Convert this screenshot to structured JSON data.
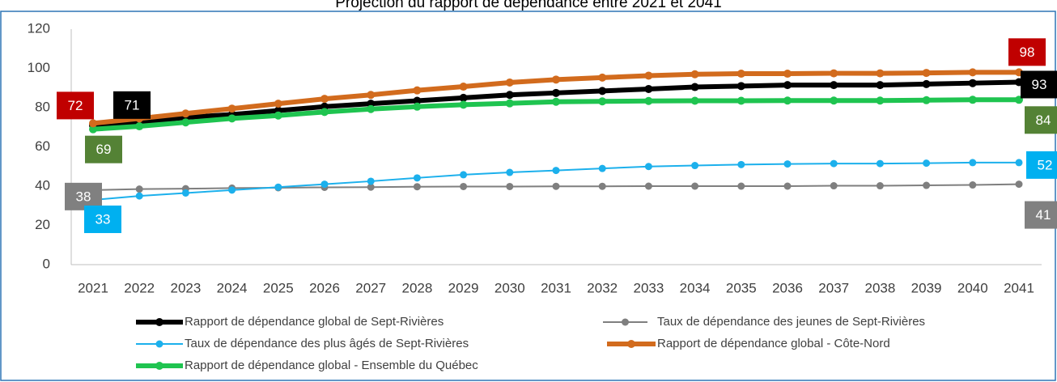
{
  "chart_data": {
    "type": "line",
    "title": "Projection du rapport de dépendance entre 2021 et 2041",
    "categories": [
      "2021",
      "2022",
      "2023",
      "2024",
      "2025",
      "2026",
      "2027",
      "2028",
      "2029",
      "2030",
      "2031",
      "2032",
      "2033",
      "2034",
      "2035",
      "2036",
      "2037",
      "2038",
      "2039",
      "2040",
      "2041"
    ],
    "ylim": [
      0,
      120
    ],
    "yticks": [
      0,
      20,
      40,
      60,
      80,
      100,
      120
    ],
    "grid": false,
    "series": [
      {
        "name": "Rapport de dépendance global de Sept-Rivières",
        "color": "#000000",
        "label_color": "#000000",
        "values": [
          71,
          72.5,
          75,
          76.5,
          78.5,
          80.5,
          82,
          83.5,
          85,
          86.5,
          87.5,
          88.5,
          89.5,
          90.5,
          91,
          91.5,
          91.5,
          91.5,
          92,
          92.5,
          93
        ]
      },
      {
        "name": "Taux de dépendance des jeunes de Sept-Rivières",
        "color": "#7f7f7f",
        "label_color": "#808080",
        "values": [
          38,
          38.5,
          38.7,
          39,
          39.2,
          39.4,
          39.5,
          39.7,
          39.8,
          39.8,
          39.9,
          39.9,
          40,
          40,
          40,
          40,
          40.2,
          40.2,
          40.4,
          40.6,
          41
        ]
      },
      {
        "name": "Taux de dépendance des plus âgés de Sept-Rivières",
        "color": "#1cb0ec",
        "label_color": "#00b0f0",
        "values": [
          33,
          35,
          36.5,
          38,
          39.5,
          41,
          42.5,
          44.2,
          45.8,
          47,
          48,
          49,
          50,
          50.5,
          51,
          51.3,
          51.5,
          51.5,
          51.7,
          52,
          52
        ]
      },
      {
        "name": "Rapport de dépendance global - Côte-Nord",
        "color": "#d26b1d",
        "label_color": "#c00000",
        "values": [
          72,
          74.5,
          77,
          79.5,
          82,
          84.5,
          86.5,
          88.8,
          90.7,
          92.8,
          94.3,
          95.3,
          96.3,
          97,
          97.3,
          97.3,
          97.5,
          97.5,
          97.7,
          98,
          98
        ]
      },
      {
        "name": "Rapport de dépendance global - Ensemble du Québec",
        "color": "#1fc450",
        "label_color": "#548235",
        "values": [
          69,
          70.5,
          72.5,
          74.5,
          76,
          77.8,
          79.3,
          80.5,
          81.5,
          82.2,
          83,
          83.2,
          83.4,
          83.5,
          83.5,
          83.6,
          83.6,
          83.6,
          83.8,
          84,
          84
        ]
      }
    ]
  }
}
